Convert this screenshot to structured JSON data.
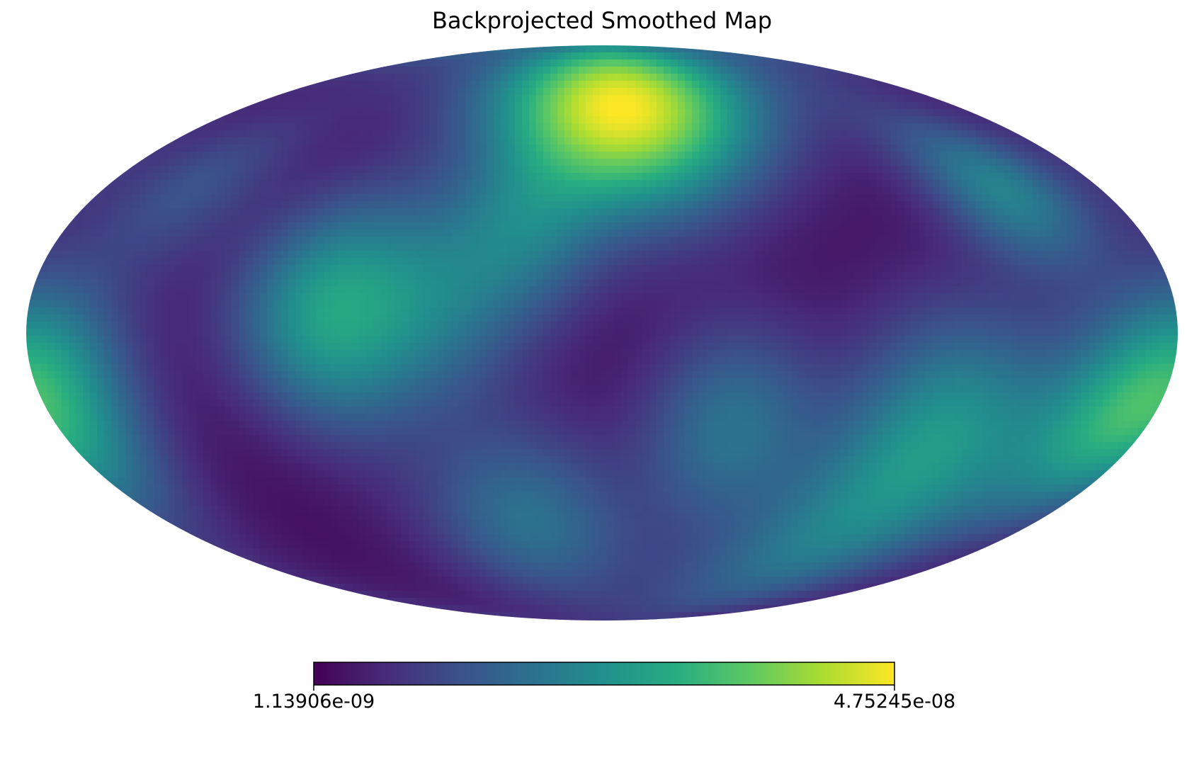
{
  "chart_data": {
    "type": "heatmap",
    "projection": "mollweide",
    "title": "Backprojected Smoothed Map",
    "colormap": "viridis",
    "colorbar": {
      "min_label": "1.13906e-09",
      "max_label": "4.75245e-08",
      "min": 1.13906e-09,
      "max": 4.75245e-08
    },
    "blobs": [
      {
        "lon": -10,
        "lat": 62,
        "amp": 1.0,
        "sigma": 20
      },
      {
        "lon": 85,
        "lat": 5,
        "amp": 0.5,
        "sigma": 20
      },
      {
        "lon": -112,
        "lat": -27,
        "amp": 0.45,
        "sigma": 22
      },
      {
        "lon": -168,
        "lat": -22,
        "amp": 0.45,
        "sigma": 18
      },
      {
        "lon": 172,
        "lat": -10,
        "amp": 0.35,
        "sigma": 18
      },
      {
        "lon": 50,
        "lat": 8,
        "amp": 0.25,
        "sigma": 18
      },
      {
        "lon": 148,
        "lat": 38,
        "amp": 0.18,
        "sigma": 15
      },
      {
        "lon": 25,
        "lat": 25,
        "amp": 0.25,
        "sigma": 16
      },
      {
        "lon": -145,
        "lat": 38,
        "amp": 0.22,
        "sigma": 15
      },
      {
        "lon": -42,
        "lat": -24,
        "amp": 0.3,
        "sigma": 18
      },
      {
        "lon": -92,
        "lat": -62,
        "amp": 0.22,
        "sigma": 18
      },
      {
        "lon": 30,
        "lat": -50,
        "amp": 0.3,
        "sigma": 18
      },
      {
        "lon": -142,
        "lat": 36,
        "amp": 0.15,
        "sigma": 14
      }
    ]
  }
}
